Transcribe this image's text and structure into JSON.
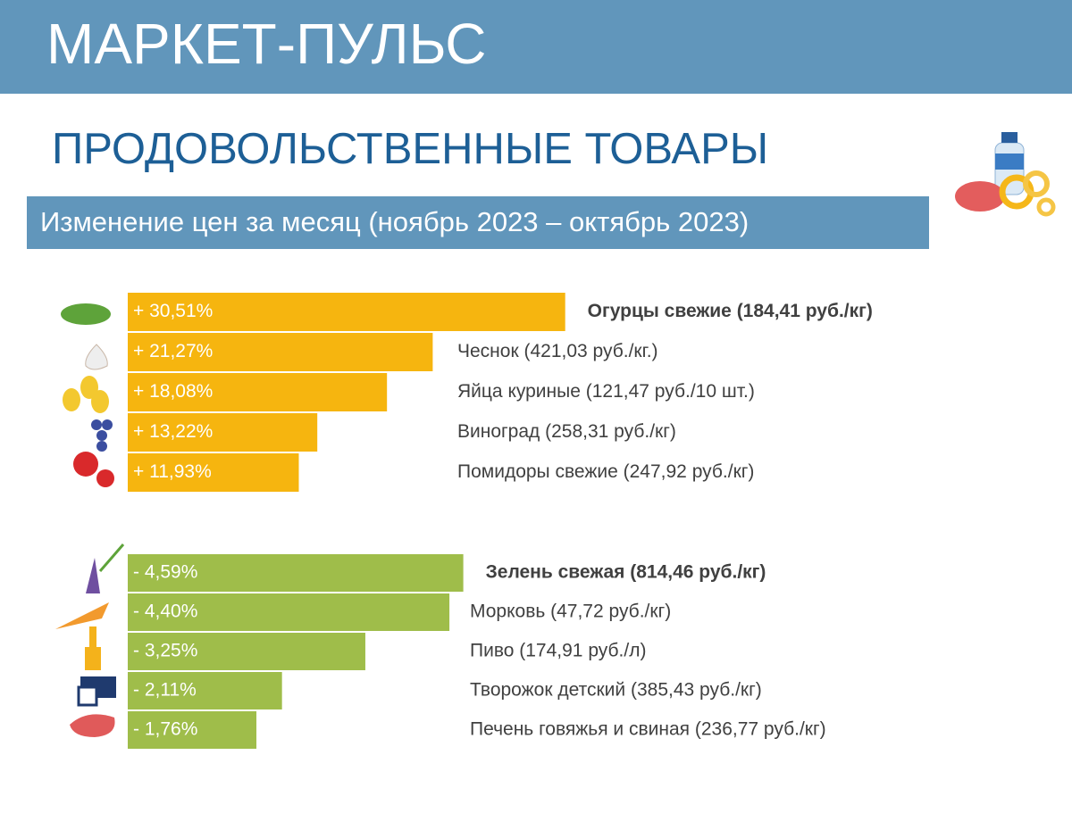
{
  "header": {
    "title": "МАРКЕТ-ПУЛЬС"
  },
  "section_title": "ПРОДОВОЛЬСТВЕННЫЕ ТОВАРЫ",
  "subtitle": "Изменение цен за месяц (ноябрь 2023 – октябрь 2023)",
  "chart_data": [
    {
      "type": "bar",
      "orientation": "horizontal",
      "categories": [
        "Огурцы свежие (184,41 руб./кг)",
        "Чеснок (421,03 руб./кг.)",
        "Яйца куриные (121,47 руб./10 шт.)",
        "Виноград (258,31 руб./кг)",
        "Помидоры свежие (247,92 руб./кг)"
      ],
      "values": [
        30.51,
        21.27,
        18.08,
        13.22,
        11.93
      ],
      "value_labels": [
        "+ 30,51%",
        "+ 21,27%",
        "+ 18,08%",
        "+ 13,22%",
        "+ 11,93%"
      ],
      "color": "#f6b50f",
      "xlim": [
        0,
        40
      ]
    },
    {
      "type": "bar",
      "orientation": "horizontal",
      "categories": [
        "Зелень свежая (814,46 руб./кг)",
        "Морковь (47,72 руб./кг)",
        "Пиво (174,91 руб./л)",
        "Творожок детский (385,43 руб./кг)",
        "Печень говяжья и свиная (236,77 руб./кг)"
      ],
      "values": [
        -4.59,
        -4.4,
        -3.25,
        -2.11,
        -1.76
      ],
      "value_labels": [
        "- 4,59%",
        "- 4,40%",
        "- 3,25%",
        "- 2,11%",
        "- 1,76%"
      ],
      "color": "#9fbd4a",
      "xlim": [
        0,
        -6
      ]
    }
  ]
}
